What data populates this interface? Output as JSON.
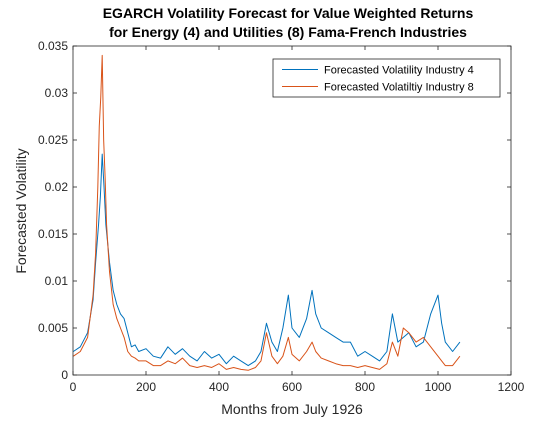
{
  "chart_data": {
    "type": "line",
    "title": "EGARCH Volatility Forecast for Value Weighted Returns",
    "subtitle": "for Energy (4) and Utilities (8)  Fama-French Industries",
    "xlabel": "Months from July 1926",
    "ylabel": "Forecasted Volatility",
    "xlim": [
      0,
      1200
    ],
    "ylim": [
      0,
      0.035
    ],
    "x_ticks": [
      0,
      200,
      400,
      600,
      800,
      1000,
      1200
    ],
    "x_tick_labels": [
      "0",
      "200",
      "400",
      "600",
      "800",
      "1000",
      "1200"
    ],
    "y_ticks": [
      0,
      0.005,
      0.01,
      0.015,
      0.02,
      0.025,
      0.03,
      0.035
    ],
    "y_tick_labels": [
      "0",
      "0.005",
      "0.01",
      "0.015",
      "0.02",
      "0.025",
      "0.03",
      "0.035"
    ],
    "grid": false,
    "legend_position": "top-right",
    "series": [
      {
        "name": "Forecasted Volatility Industry 4",
        "color": "#0072bd",
        "x": [
          1,
          20,
          40,
          55,
          62,
          70,
          75,
          80,
          85,
          90,
          100,
          110,
          120,
          130,
          140,
          150,
          160,
          170,
          180,
          200,
          220,
          240,
          260,
          280,
          300,
          320,
          340,
          360,
          380,
          400,
          420,
          440,
          460,
          480,
          500,
          515,
          530,
          545,
          560,
          575,
          590,
          600,
          620,
          640,
          655,
          665,
          680,
          700,
          720,
          740,
          760,
          780,
          800,
          820,
          840,
          860,
          875,
          890,
          905,
          920,
          940,
          960,
          980,
          1000,
          1010,
          1020,
          1040,
          1060
        ],
        "y": [
          0.0025,
          0.003,
          0.0045,
          0.008,
          0.012,
          0.016,
          0.019,
          0.0235,
          0.02,
          0.016,
          0.012,
          0.009,
          0.0075,
          0.0065,
          0.006,
          0.0045,
          0.003,
          0.0032,
          0.0025,
          0.0028,
          0.002,
          0.0018,
          0.003,
          0.0022,
          0.0028,
          0.002,
          0.0015,
          0.0025,
          0.0018,
          0.0022,
          0.0012,
          0.002,
          0.0015,
          0.001,
          0.0015,
          0.0025,
          0.0055,
          0.0035,
          0.0025,
          0.005,
          0.0085,
          0.005,
          0.004,
          0.006,
          0.009,
          0.0065,
          0.005,
          0.0045,
          0.004,
          0.0035,
          0.0035,
          0.002,
          0.0025,
          0.002,
          0.0015,
          0.0025,
          0.0065,
          0.0035,
          0.004,
          0.0045,
          0.003,
          0.0035,
          0.0065,
          0.0085,
          0.0055,
          0.0035,
          0.0025,
          0.0035
        ]
      },
      {
        "name": "Forecasted Volatiltiy Industry 8",
        "color": "#d95319",
        "x": [
          1,
          20,
          40,
          55,
          62,
          68,
          72,
          76,
          80,
          84,
          88,
          92,
          100,
          110,
          120,
          130,
          140,
          150,
          160,
          170,
          180,
          200,
          220,
          240,
          260,
          280,
          300,
          320,
          340,
          360,
          380,
          400,
          420,
          440,
          460,
          480,
          500,
          515,
          530,
          545,
          560,
          575,
          590,
          600,
          620,
          640,
          655,
          665,
          680,
          700,
          720,
          740,
          760,
          780,
          800,
          820,
          840,
          860,
          875,
          890,
          905,
          920,
          940,
          960,
          980,
          1000,
          1010,
          1020,
          1040,
          1060
        ],
        "y": [
          0.002,
          0.0025,
          0.004,
          0.0085,
          0.013,
          0.02,
          0.0265,
          0.0295,
          0.034,
          0.025,
          0.021,
          0.016,
          0.011,
          0.0075,
          0.006,
          0.005,
          0.004,
          0.0025,
          0.002,
          0.0018,
          0.0015,
          0.0015,
          0.001,
          0.001,
          0.0015,
          0.0012,
          0.0018,
          0.001,
          0.0008,
          0.001,
          0.0008,
          0.0012,
          0.0006,
          0.0008,
          0.0006,
          0.0005,
          0.0008,
          0.0015,
          0.0045,
          0.002,
          0.0012,
          0.002,
          0.004,
          0.0022,
          0.0015,
          0.0025,
          0.0035,
          0.0025,
          0.0018,
          0.0015,
          0.0012,
          0.001,
          0.001,
          0.0008,
          0.001,
          0.0008,
          0.0006,
          0.0012,
          0.0035,
          0.002,
          0.005,
          0.0045,
          0.0035,
          0.004,
          0.003,
          0.002,
          0.0015,
          0.001,
          0.001,
          0.002
        ]
      }
    ]
  }
}
